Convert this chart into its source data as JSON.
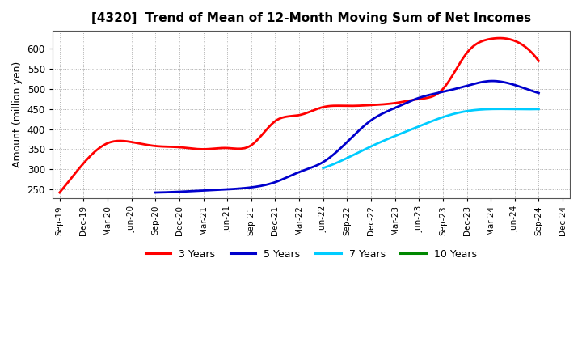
{
  "title": "[4320]  Trend of Mean of 12-Month Moving Sum of Net Incomes",
  "ylabel": "Amount (million yen)",
  "background_color": "#ffffff",
  "plot_bg_color": "#ffffff",
  "grid_color": "#999999",
  "ylim": [
    228,
    645
  ],
  "yticks": [
    250,
    300,
    350,
    400,
    450,
    500,
    550,
    600
  ],
  "x_labels": [
    "Sep-19",
    "Dec-19",
    "Mar-20",
    "Jun-20",
    "Sep-20",
    "Dec-20",
    "Mar-21",
    "Jun-21",
    "Sep-21",
    "Dec-21",
    "Mar-22",
    "Jun-22",
    "Sep-22",
    "Dec-22",
    "Mar-23",
    "Jun-23",
    "Sep-23",
    "Dec-23",
    "Mar-24",
    "Jun-24",
    "Sep-24",
    "Dec-24"
  ],
  "series": {
    "3 Years": {
      "color": "#ff0000",
      "data_x": [
        0,
        1,
        2,
        3,
        4,
        5,
        6,
        7,
        8,
        9,
        10,
        11,
        12,
        13,
        14,
        15,
        16,
        17,
        18,
        19,
        20
      ],
      "data_y": [
        242,
        315,
        365,
        368,
        358,
        355,
        350,
        353,
        360,
        420,
        435,
        455,
        458,
        460,
        465,
        475,
        500,
        590,
        625,
        620,
        570
      ]
    },
    "5 Years": {
      "color": "#0000cc",
      "data_x": [
        4,
        5,
        6,
        7,
        8,
        9,
        10,
        11,
        12,
        13,
        14,
        15,
        16,
        17,
        18,
        19,
        20
      ],
      "data_y": [
        242,
        244,
        247,
        250,
        255,
        268,
        293,
        318,
        368,
        422,
        453,
        478,
        493,
        508,
        520,
        510,
        490
      ]
    },
    "7 Years": {
      "color": "#00ccff",
      "data_x": [
        11,
        12,
        13,
        14,
        15,
        16,
        17,
        18,
        19,
        20
      ],
      "data_y": [
        303,
        328,
        357,
        383,
        407,
        430,
        445,
        450,
        450,
        450
      ]
    },
    "10 Years": {
      "color": "#008800",
      "data_x": [],
      "data_y": []
    }
  },
  "legend_labels": [
    "3 Years",
    "5 Years",
    "7 Years",
    "10 Years"
  ],
  "legend_colors": [
    "#ff0000",
    "#0000cc",
    "#00ccff",
    "#008800"
  ]
}
